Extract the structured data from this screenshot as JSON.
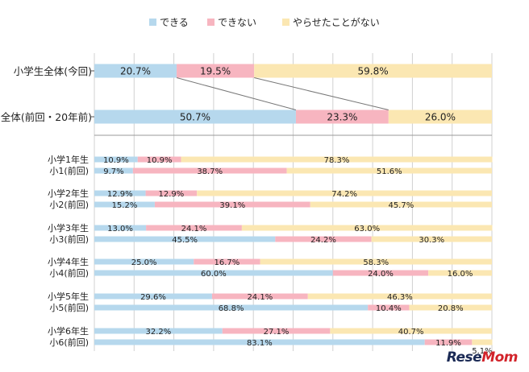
{
  "chart_data": {
    "type": "bar",
    "orientation": "horizontal",
    "stacked": true,
    "xlim": [
      0,
      100
    ],
    "grid": true,
    "legend_position": "top",
    "series": [
      {
        "name": "できる",
        "color": "#b6d8ed"
      },
      {
        "name": "できない",
        "color": "#f7b5c0"
      },
      {
        "name": "やらせたことがない",
        "color": "#fbe7b2"
      }
    ],
    "overview": [
      {
        "label": "小学生全体(今回)",
        "values": [
          20.7,
          19.5,
          59.8
        ],
        "value_labels": [
          "20.7%",
          "19.5%",
          "59.8%"
        ]
      },
      {
        "label": "全体(前回・20年前)",
        "values": [
          50.7,
          23.3,
          26.0
        ],
        "value_labels": [
          "50.7%",
          "23.3%",
          "26.0%"
        ]
      }
    ],
    "grades": [
      {
        "rows": [
          {
            "label": "小学1年生",
            "values": [
              10.9,
              10.9,
              78.3
            ],
            "value_labels": [
              "10.9%",
              "10.9%",
              "78.3%"
            ]
          },
          {
            "label": "小1(前回)",
            "values": [
              9.7,
              38.7,
              51.6
            ],
            "value_labels": [
              "9.7%",
              "38.7%",
              "51.6%"
            ]
          }
        ]
      },
      {
        "rows": [
          {
            "label": "小学2年生",
            "values": [
              12.9,
              12.9,
              74.2
            ],
            "value_labels": [
              "12.9%",
              "12.9%",
              "74.2%"
            ]
          },
          {
            "label": "小2(前回)",
            "values": [
              15.2,
              39.1,
              45.7
            ],
            "value_labels": [
              "15.2%",
              "39.1%",
              "45.7%"
            ]
          }
        ]
      },
      {
        "rows": [
          {
            "label": "小学3年生",
            "values": [
              13.0,
              24.1,
              63.0
            ],
            "value_labels": [
              "13.0%",
              "24.1%",
              "63.0%"
            ]
          },
          {
            "label": "小3(前回)",
            "values": [
              45.5,
              24.2,
              30.3
            ],
            "value_labels": [
              "45.5%",
              "24.2%",
              "30.3%"
            ]
          }
        ]
      },
      {
        "rows": [
          {
            "label": "小学4年生",
            "values": [
              25.0,
              16.7,
              58.3
            ],
            "value_labels": [
              "25.0%",
              "16.7%",
              "58.3%"
            ]
          },
          {
            "label": "小4(前回)",
            "values": [
              60.0,
              24.0,
              16.0
            ],
            "value_labels": [
              "60.0%",
              "24.0%",
              "16.0%"
            ]
          }
        ]
      },
      {
        "rows": [
          {
            "label": "小学5年生",
            "values": [
              29.6,
              24.1,
              46.3
            ],
            "value_labels": [
              "29.6%",
              "24.1%",
              "46.3%"
            ]
          },
          {
            "label": "小5(前回)",
            "values": [
              68.8,
              10.4,
              20.8
            ],
            "value_labels": [
              "68.8%",
              "10.4%",
              "20.8%"
            ]
          }
        ]
      },
      {
        "rows": [
          {
            "label": "小学6年生",
            "values": [
              32.2,
              27.1,
              40.7
            ],
            "value_labels": [
              "32.2%",
              "27.1%",
              "40.7%"
            ]
          },
          {
            "label": "小6(前回)",
            "values": [
              83.1,
              11.9,
              5.1
            ],
            "value_labels": [
              "83.1%",
              "11.9%",
              "5.1%"
            ]
          }
        ]
      }
    ]
  },
  "watermark": {
    "part1": "Rese",
    "part2": "Mom"
  }
}
